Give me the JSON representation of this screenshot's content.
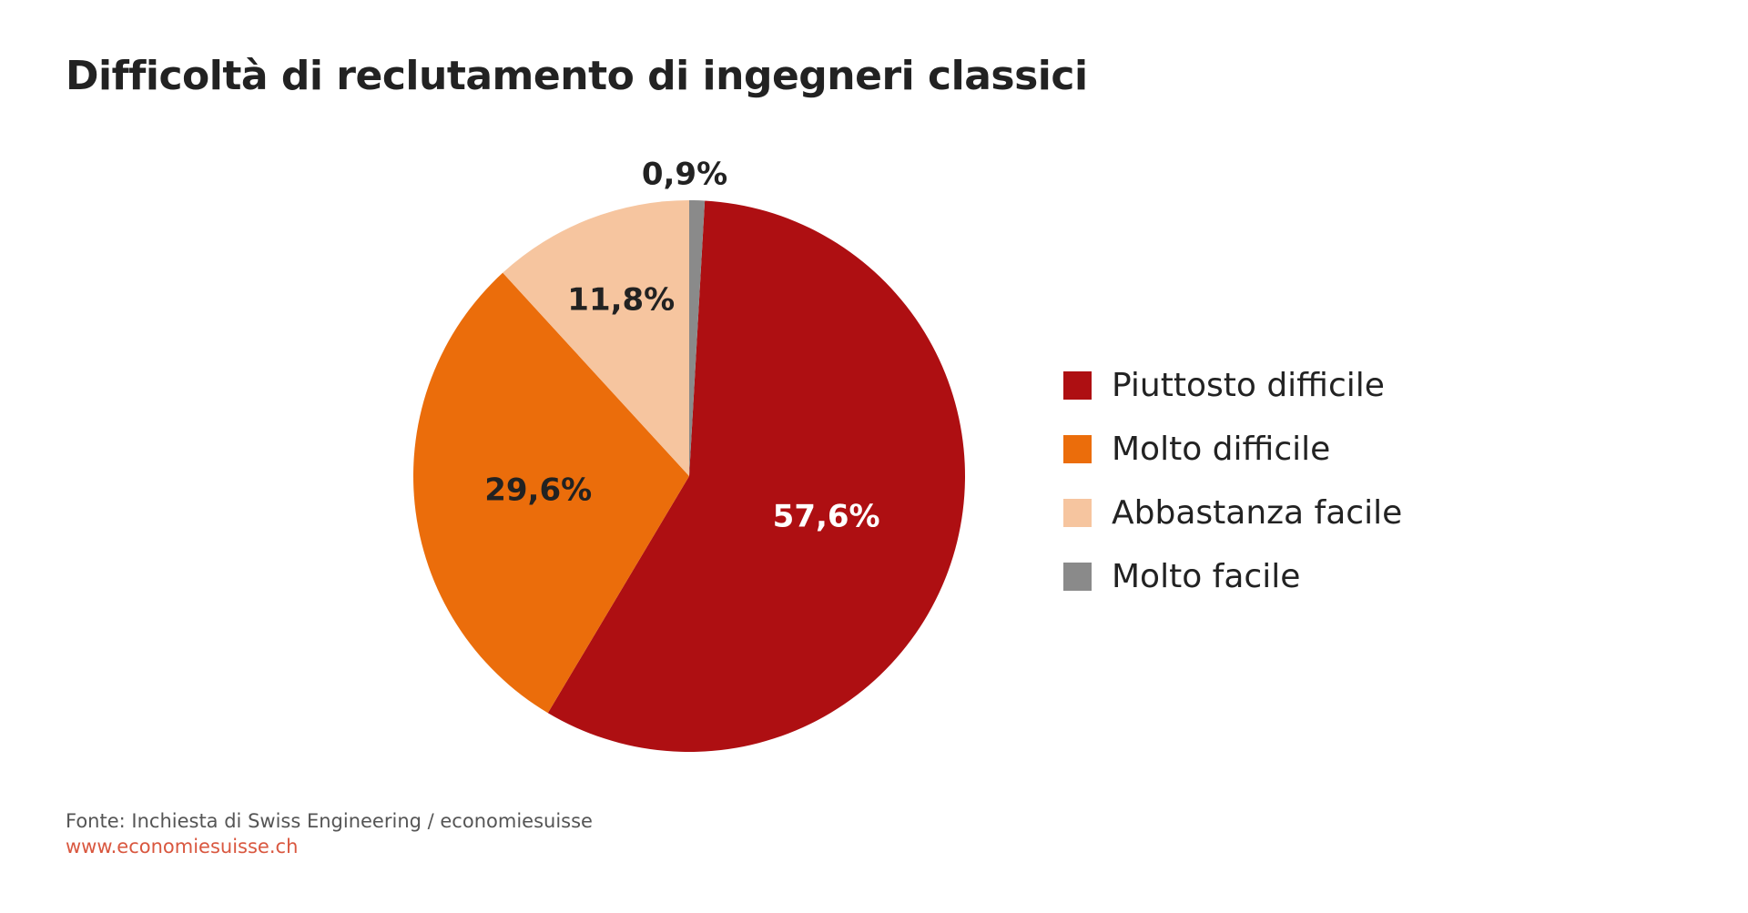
{
  "chart_data": {
    "type": "pie",
    "title": "Difficoltà di reclutamento di ingegneri classici",
    "slices": [
      {
        "label": "Piuttosto difficile",
        "value": 57.6,
        "display": "57,6%",
        "color": "#ae0f12",
        "text_color": "#ffffff"
      },
      {
        "label": "Molto difficile",
        "value": 29.6,
        "display": "29,6%",
        "color": "#eb6d0b",
        "text_color": "#222222"
      },
      {
        "label": "Abbastanza facile",
        "value": 11.8,
        "display": "11,8%",
        "color": "#f6c59f",
        "text_color": "#222222"
      },
      {
        "label": "Molto facile",
        "value": 0.9,
        "display": "0,9%",
        "color": "#8a8a8a",
        "text_color": "#222222"
      }
    ],
    "legend_position": "right"
  },
  "footer": {
    "source": "Fonte: Inchiesta di Swiss Engineering / economiesuisse",
    "website": "www.economiesuisse.ch"
  }
}
